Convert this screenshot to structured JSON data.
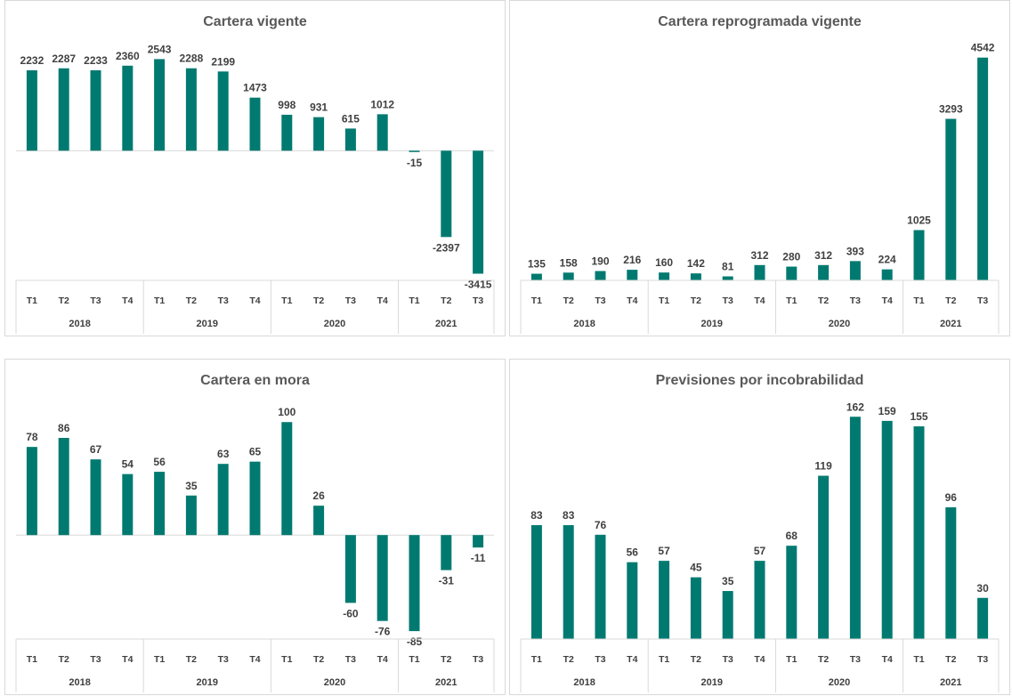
{
  "colors": {
    "bar": "#007A70",
    "axis": "#d9d9d9",
    "text": "#404040",
    "title": "#595959"
  },
  "chart_data": [
    {
      "type": "bar",
      "title": "Cartera vigente",
      "categories": [
        "T1",
        "T2",
        "T3",
        "T4",
        "T1",
        "T2",
        "T3",
        "T4",
        "T1",
        "T2",
        "T3",
        "T4",
        "T1",
        "T2",
        "T3"
      ],
      "groups": [
        {
          "label": "2018",
          "count": 4
        },
        {
          "label": "2019",
          "count": 4
        },
        {
          "label": "2020",
          "count": 4
        },
        {
          "label": "2021",
          "count": 3
        }
      ],
      "values": [
        2232,
        2287,
        2233,
        2360,
        2543,
        2288,
        2199,
        1473,
        998,
        931,
        615,
        1012,
        -15,
        -2397,
        -3415
      ],
      "ylim": [
        -3600,
        2800
      ]
    },
    {
      "type": "bar",
      "title": "Cartera reprogramada vigente",
      "categories": [
        "T1",
        "T2",
        "T3",
        "T4",
        "T1",
        "T2",
        "T3",
        "T4",
        "T1",
        "T2",
        "T3",
        "T4",
        "T1",
        "T2",
        "T3"
      ],
      "groups": [
        {
          "label": "2018",
          "count": 4
        },
        {
          "label": "2019",
          "count": 4
        },
        {
          "label": "2020",
          "count": 4
        },
        {
          "label": "2021",
          "count": 3
        }
      ],
      "values": [
        135,
        158,
        190,
        216,
        160,
        142,
        81,
        312,
        280,
        312,
        393,
        224,
        1025,
        3293,
        4542
      ],
      "ylim": [
        0,
        4700
      ]
    },
    {
      "type": "bar",
      "title": "Cartera en mora",
      "categories": [
        "T1",
        "T2",
        "T3",
        "T4",
        "T1",
        "T2",
        "T3",
        "T4",
        "T1",
        "T2",
        "T3",
        "T4",
        "T1",
        "T2",
        "T3"
      ],
      "groups": [
        {
          "label": "2018",
          "count": 4
        },
        {
          "label": "2019",
          "count": 4
        },
        {
          "label": "2020",
          "count": 4
        },
        {
          "label": "2021",
          "count": 3
        }
      ],
      "values": [
        78,
        86,
        67,
        54,
        56,
        35,
        63,
        65,
        100,
        26,
        -60,
        -76,
        -85,
        -31,
        -11
      ],
      "ylim": [
        -92,
        112
      ]
    },
    {
      "type": "bar",
      "title": "Previsiones por incobrabilidad",
      "categories": [
        "T1",
        "T2",
        "T3",
        "T4",
        "T1",
        "T2",
        "T3",
        "T4",
        "T1",
        "T2",
        "T3",
        "T4",
        "T1",
        "T2",
        "T3"
      ],
      "groups": [
        {
          "label": "2018",
          "count": 4
        },
        {
          "label": "2019",
          "count": 4
        },
        {
          "label": "2020",
          "count": 4
        },
        {
          "label": "2021",
          "count": 3
        }
      ],
      "values": [
        83,
        83,
        76,
        56,
        57,
        45,
        35,
        57,
        68,
        119,
        162,
        159,
        155,
        96,
        30
      ],
      "ylim": [
        0,
        168
      ]
    }
  ]
}
